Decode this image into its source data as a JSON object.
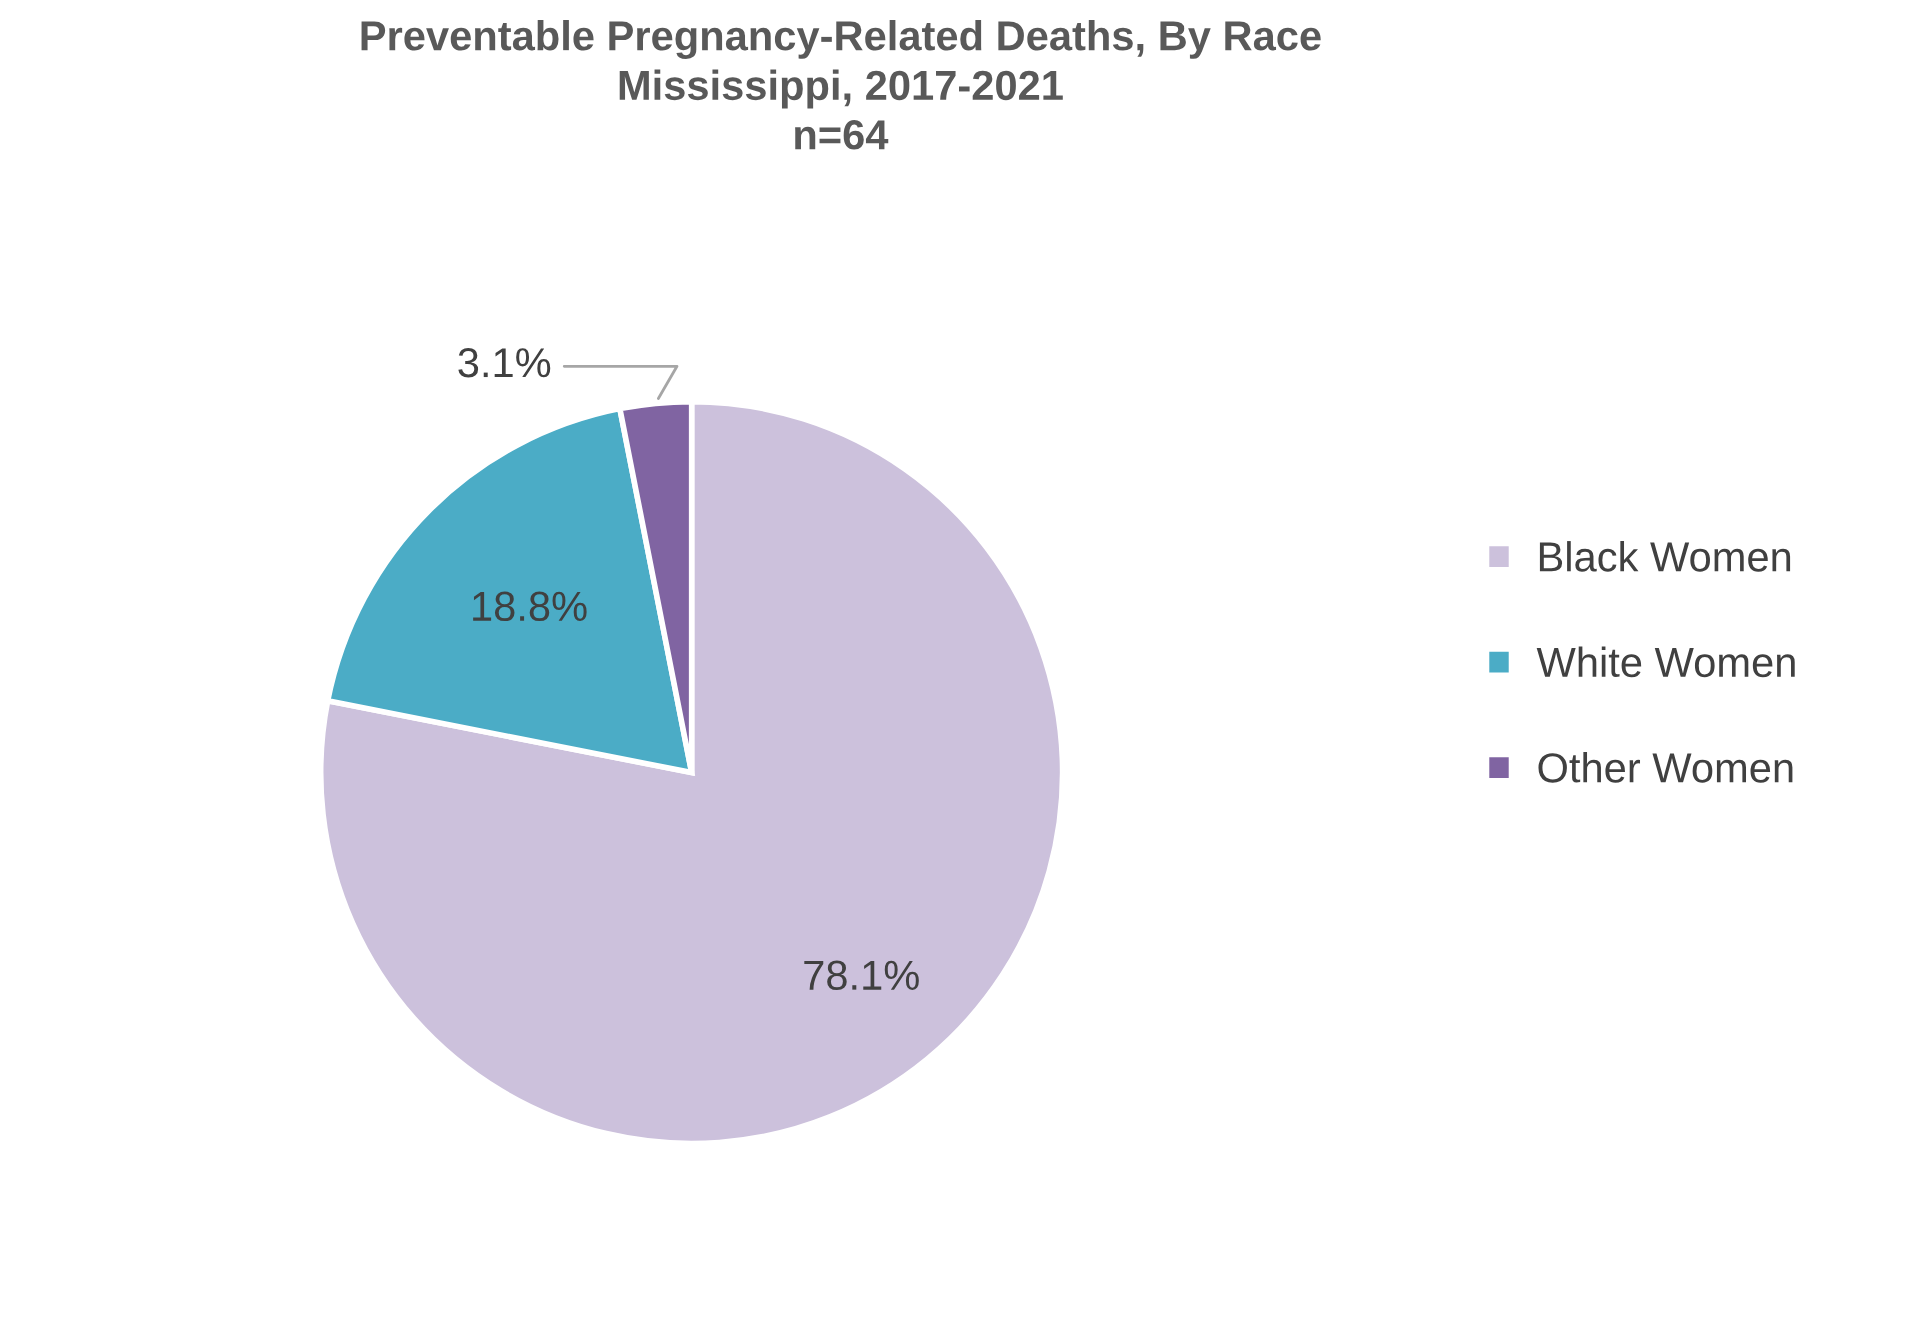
{
  "chart_data": {
    "type": "pie",
    "title": "Preventable Pregnancy-Related Deaths, By Race\nMississippi, 2017-2021\nn=64",
    "categories": [
      "Black Women",
      "White Women",
      "Other Women"
    ],
    "values": [
      78.1,
      18.8,
      3.1
    ],
    "colors": [
      "#ccc1dc",
      "#4bacc6",
      "#8064a2"
    ],
    "value_labels": [
      "78.1%",
      "18.8%",
      "3.1%"
    ],
    "legend": "right"
  }
}
